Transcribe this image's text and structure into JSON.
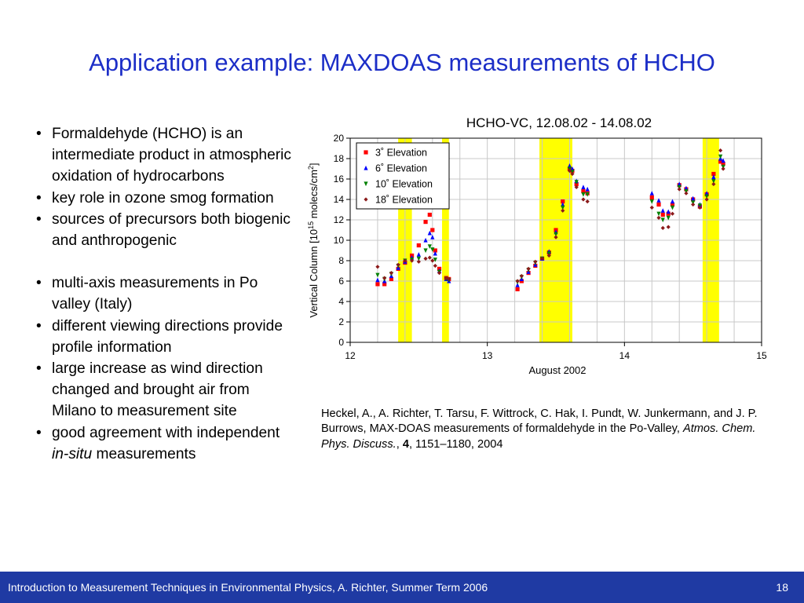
{
  "slide": {
    "title": "Application example: MAXDOAS measurements of HCHO",
    "bullets": [
      {
        "text": "Formaldehyde (HCHO) is an intermediate product in atmospheric oxidation of hydrocarbons"
      },
      {
        "text": "key role in ozone smog formation"
      },
      {
        "text": "sources of precursors both biogenic and anthropogenic"
      },
      {
        "text": "multi-axis measurements in Po valley (Italy)"
      },
      {
        "text": "different viewing directions provide profile information"
      },
      {
        "text": "large increase as wind direction changed and brought air from Milano to measurement site"
      },
      {
        "text_before": "good agreement with independent ",
        "text_italic": "in-situ",
        "text_after": " measurements"
      }
    ],
    "citation": {
      "authors": "Heckel, A., A. Richter, T. Tarsu, F. Wittrock, C. Hak, I. Pundt, W. Junkermann, and J. P. Burrows, MAX-DOAS measurements of formaldehyde in the Po-Valley, ",
      "journal": "Atmos. Chem. Phys. Discuss.",
      "sep1": ", ",
      "volume": "4",
      "pages": ", 1151–1180, 2004"
    },
    "footer": {
      "text": "Introduction to Measurement Techniques in Environmental Physics, A. Richter, Summer Term 2006",
      "page": "18"
    }
  },
  "colors": {
    "title": "#1c2ec7",
    "footer_bg": "#1f3aa3",
    "highlight": "#ffff00"
  },
  "chart_data": {
    "type": "scatter",
    "title": "HCHO-VC, 12.08.02 - 14.08.02",
    "xlabel": "August 2002",
    "ylabel": "Vertical Column [10",
    "ylabel_sup": "15",
    "ylabel_mid": " molecs/cm",
    "ylabel_sup2": "2",
    "ylabel_end": "]",
    "xlim": [
      12,
      15
    ],
    "ylim": [
      0,
      20
    ],
    "xticks": [
      "12",
      "13",
      "14",
      "15"
    ],
    "yticks": [
      "0",
      "2",
      "4",
      "6",
      "8",
      "10",
      "12",
      "14",
      "16",
      "18",
      "20"
    ],
    "grid": true,
    "legend_position": "top-left",
    "highlight_bands": [
      [
        12.35,
        12.45
      ],
      [
        12.67,
        12.72
      ],
      [
        13.38,
        13.62
      ],
      [
        14.57,
        14.69
      ]
    ],
    "series": [
      {
        "name": "3˚ Elevation",
        "color": "#ff0000",
        "marker": "square",
        "x": [
          12.2,
          12.25,
          12.3,
          12.35,
          12.4,
          12.45,
          12.5,
          12.55,
          12.58,
          12.6,
          12.62,
          12.65,
          12.7,
          12.72,
          13.22,
          13.25,
          13.3,
          13.35,
          13.4,
          13.45,
          13.5,
          13.55,
          13.6,
          13.62,
          13.65,
          13.7,
          13.73,
          14.2,
          14.25,
          14.28,
          14.32,
          14.35,
          14.4,
          14.45,
          14.5,
          14.55,
          14.6,
          14.65,
          14.7,
          14.72
        ],
        "y": [
          5.7,
          5.7,
          6.2,
          7.2,
          7.8,
          8.5,
          9.5,
          11.8,
          12.5,
          11,
          9,
          7.2,
          6.3,
          6.2,
          5.2,
          6,
          6.8,
          7.5,
          8.2,
          8.8,
          11,
          13.8,
          17,
          16.8,
          15.5,
          14.8,
          14.6,
          14.2,
          13.5,
          12.5,
          12.6,
          13.5,
          15.4,
          15,
          14,
          13.3,
          14.5,
          16.5,
          17.7,
          17.5
        ]
      },
      {
        "name": "6˚ Elevation",
        "color": "#0000ff",
        "marker": "triangle-up",
        "x": [
          12.2,
          12.25,
          12.3,
          12.35,
          12.4,
          12.45,
          12.5,
          12.55,
          12.58,
          12.6,
          12.62,
          12.65,
          12.7,
          12.72,
          13.22,
          13.25,
          13.3,
          13.35,
          13.4,
          13.45,
          13.5,
          13.55,
          13.6,
          13.62,
          13.65,
          13.7,
          13.73,
          14.2,
          14.25,
          14.28,
          14.32,
          14.35,
          14.4,
          14.45,
          14.5,
          14.55,
          14.6,
          14.65,
          14.7,
          14.72
        ],
        "y": [
          6.1,
          6,
          6.5,
          7.3,
          7.9,
          8.3,
          8.6,
          10,
          10.7,
          10.3,
          8.7,
          7,
          6.2,
          6,
          5.6,
          6.2,
          6.9,
          7.6,
          8.2,
          8.9,
          10.8,
          13.5,
          17.3,
          17,
          15.8,
          15.2,
          15,
          14.6,
          13.9,
          12.9,
          12.8,
          13.8,
          15.5,
          15.1,
          14.1,
          13.5,
          14.6,
          16.2,
          18,
          17.8
        ]
      },
      {
        "name": "10˚ Elevation",
        "color": "#008000",
        "marker": "triangle-down",
        "x": [
          12.2,
          12.25,
          12.3,
          12.35,
          12.4,
          12.45,
          12.5,
          12.55,
          12.58,
          12.6,
          12.62,
          12.65,
          12.7,
          12.72,
          13.22,
          13.25,
          13.3,
          13.35,
          13.4,
          13.45,
          13.5,
          13.55,
          13.6,
          13.62,
          13.65,
          13.7,
          13.73,
          14.2,
          14.25,
          14.28,
          14.32,
          14.35,
          14.4,
          14.45,
          14.5,
          14.55,
          14.6,
          14.65,
          14.7,
          14.72
        ],
        "y": [
          6.6,
          6.2,
          6.7,
          7.5,
          8,
          8.1,
          8.2,
          9,
          9.4,
          9.1,
          8.1,
          6.9,
          6.2,
          6.1,
          5.9,
          6.4,
          7.1,
          7.8,
          8.2,
          8.7,
          10.6,
          13.2,
          17,
          16.7,
          15.7,
          14.5,
          14.5,
          13.8,
          12.6,
          12,
          12.2,
          13.2,
          15.2,
          14.8,
          13.7,
          13.4,
          14.3,
          15.8,
          18.2,
          17.2
        ]
      },
      {
        "name": "18˚ Elevation",
        "color": "#8b1a1a",
        "marker": "diamond",
        "x": [
          12.2,
          12.25,
          12.3,
          12.35,
          12.4,
          12.45,
          12.5,
          12.55,
          12.58,
          12.6,
          12.62,
          12.65,
          12.7,
          12.72,
          13.22,
          13.25,
          13.3,
          13.35,
          13.4,
          13.45,
          13.5,
          13.55,
          13.6,
          13.62,
          13.65,
          13.7,
          13.73,
          14.2,
          14.25,
          14.28,
          14.32,
          14.35,
          14.4,
          14.45,
          14.5,
          14.55,
          14.6,
          14.65,
          14.7,
          14.72
        ],
        "y": [
          7.4,
          6.3,
          6.8,
          7.6,
          8,
          8,
          7.9,
          8.2,
          8.3,
          8,
          7.5,
          6.8,
          6.3,
          6.2,
          6,
          6.5,
          7.2,
          7.9,
          8.2,
          8.5,
          10.3,
          12.9,
          16.8,
          16.5,
          15.2,
          14,
          13.8,
          13.2,
          12.2,
          11.2,
          11.3,
          12.6,
          15,
          14.6,
          13.5,
          13.2,
          14,
          15.5,
          18.8,
          17
        ]
      }
    ]
  }
}
